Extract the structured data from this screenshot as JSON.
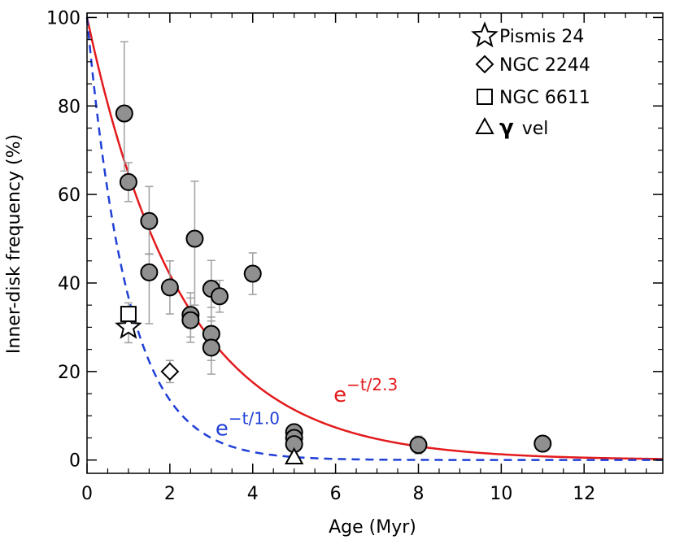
{
  "chart_data": {
    "type": "scatter",
    "title": "",
    "xlabel": "Age (Myr)",
    "ylabel": "Inner-disk frequency (%)",
    "xlim": [
      0,
      13.9
    ],
    "ylim": [
      -3,
      101
    ],
    "x_ticks": [
      0,
      2,
      4,
      6,
      8,
      10,
      12
    ],
    "y_ticks": [
      0,
      20,
      40,
      60,
      80,
      100
    ],
    "grid": false,
    "legend_position": "top-right",
    "legend": [
      {
        "marker": "star",
        "label": "Pismis 24"
      },
      {
        "marker": "diamond",
        "label": "NGC 2244"
      },
      {
        "marker": "square",
        "label": "NGC 6611"
      },
      {
        "marker": "triangle",
        "label_symbol": "γ",
        "label": "vel"
      }
    ],
    "series": [
      {
        "marker": "filled-circle",
        "color": "#909090",
        "points": [
          {
            "x": 0.9,
            "y": 78.3,
            "err_lo": 13.0,
            "err_hi": 16.2
          },
          {
            "x": 1.0,
            "y": 62.8,
            "err_lo": 4.4,
            "err_hi": 4.4
          },
          {
            "x": 1.5,
            "y": 54.0,
            "err_lo": 7.5,
            "err_hi": 7.8
          },
          {
            "x": 1.5,
            "y": 42.4,
            "err_lo": 11.6,
            "err_hi": 4.2
          },
          {
            "x": 2.0,
            "y": 39.0,
            "err_lo": 6.0,
            "err_hi": 6.0
          },
          {
            "x": 2.5,
            "y": 32.8,
            "err_lo": 5.0,
            "err_hi": 5.0
          },
          {
            "x": 2.5,
            "y": 31.6,
            "err_lo": 5.0,
            "err_hi": 5.0
          },
          {
            "x": 2.6,
            "y": 50.0,
            "err_lo": 15.0,
            "err_hi": 13.0
          },
          {
            "x": 3.0,
            "y": 38.7,
            "err_lo": 6.4,
            "err_hi": 6.4
          },
          {
            "x": 3.0,
            "y": 28.5,
            "err_lo": 6.0,
            "err_hi": 6.0
          },
          {
            "x": 3.0,
            "y": 25.4,
            "err_lo": 6.0,
            "err_hi": 6.0
          },
          {
            "x": 3.2,
            "y": 37.0,
            "err_lo": 3.6,
            "err_hi": 3.6
          },
          {
            "x": 4.0,
            "y": 42.1,
            "err_lo": 4.7,
            "err_hi": 4.7
          },
          {
            "x": 5.0,
            "y": 6.3,
            "err_lo": 1.0,
            "err_hi": 1.0
          },
          {
            "x": 5.0,
            "y": 5.0,
            "err_lo": 1.0,
            "err_hi": 1.0
          },
          {
            "x": 5.0,
            "y": 3.6,
            "err_lo": 1.0,
            "err_hi": 1.0
          },
          {
            "x": 8.0,
            "y": 3.4,
            "err_lo": 2.0,
            "err_hi": 2.0
          },
          {
            "x": 11.0,
            "y": 3.7,
            "err_lo": 1.6,
            "err_hi": 1.6
          }
        ]
      },
      {
        "marker": "star",
        "name": "Pismis 24",
        "points": [
          {
            "x": 1.0,
            "y": 30.0,
            "err_lo": 3.5,
            "err_hi": 3.5
          }
        ]
      },
      {
        "marker": "diamond",
        "name": "NGC 2244",
        "points": [
          {
            "x": 2.0,
            "y": 20.0,
            "err_lo": 2.5,
            "err_hi": 2.5
          }
        ]
      },
      {
        "marker": "square",
        "name": "NGC 6611",
        "points": [
          {
            "x": 1.0,
            "y": 33.0,
            "err_lo": 2.5,
            "err_hi": 2.5
          }
        ]
      },
      {
        "marker": "triangle",
        "name": "γ vel",
        "points": [
          {
            "x": 5.0,
            "y": 0.5,
            "err_lo": 0.5,
            "err_hi": 0.5
          }
        ]
      }
    ],
    "curves": [
      {
        "label_base": "e",
        "label_exp": "−t/2.3",
        "tau": 2.3,
        "amplitude": 100,
        "color": "#e31a1c",
        "style": "solid",
        "label_at": [
          5.95,
          13.2
        ]
      },
      {
        "label_base": "e",
        "label_exp": "−t/1.0",
        "tau": 1.0,
        "amplitude": 100,
        "color": "#1f3fd6",
        "style": "dashed",
        "label_at": [
          3.1,
          5.5
        ]
      }
    ]
  }
}
